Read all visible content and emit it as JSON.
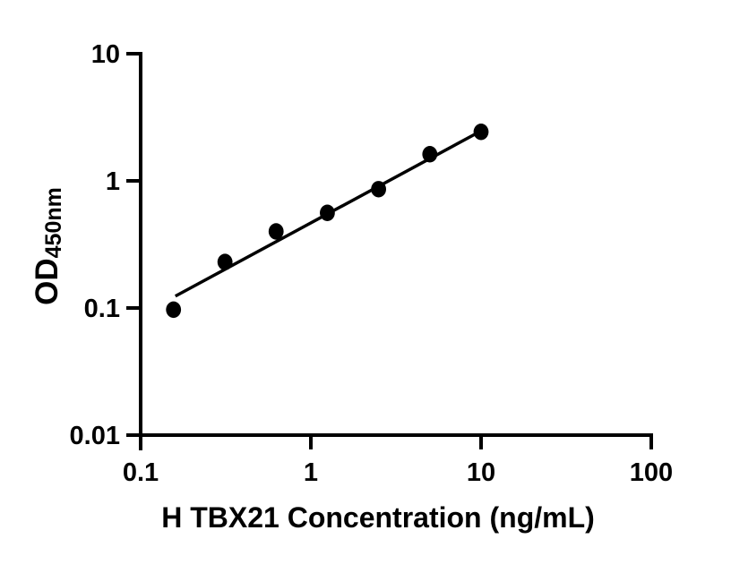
{
  "figure": {
    "background": "#ffffff",
    "axis_color": "#000000"
  },
  "chart_data": {
    "type": "scatter",
    "title": "",
    "xlabel": "H TBX21 Concentration (ng/mL)",
    "ylabel": "OD450nm",
    "ylabel_main": "OD",
    "ylabel_sub": "450nm",
    "x_scale": "log",
    "y_scale": "log",
    "xlim": [
      0.1,
      100
    ],
    "ylim": [
      0.01,
      10
    ],
    "grid": false,
    "x_ticks": [
      {
        "value": 0.1,
        "label": "0.1"
      },
      {
        "value": 1,
        "label": "1"
      },
      {
        "value": 10,
        "label": "10"
      },
      {
        "value": 100,
        "label": "100"
      }
    ],
    "y_ticks": [
      {
        "value": 10,
        "label": "10"
      },
      {
        "value": 1,
        "label": "1"
      },
      {
        "value": 0.1,
        "label": "0.1"
      },
      {
        "value": 0.01,
        "label": "0.01"
      }
    ],
    "series": [
      {
        "marker": "filled-circle",
        "color": "#000000",
        "x": [
          0.156,
          0.313,
          0.625,
          1.25,
          2.5,
          5,
          10
        ],
        "y": [
          0.097,
          0.23,
          0.4,
          0.56,
          0.86,
          1.62,
          2.43
        ]
      }
    ],
    "trend_line": {
      "x1": 0.16,
      "y1": 0.124,
      "x2": 10,
      "y2": 2.47,
      "color": "#000000"
    }
  }
}
